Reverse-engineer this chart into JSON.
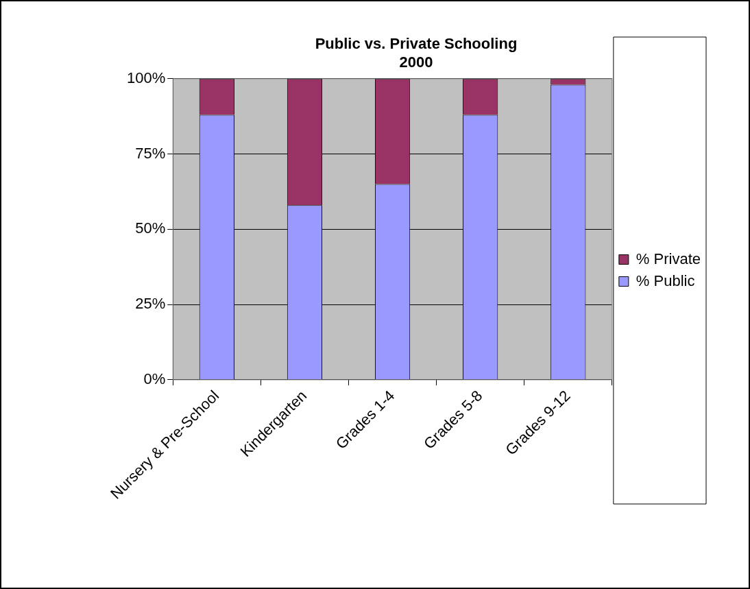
{
  "chart_data": {
    "type": "bar",
    "title": "Public vs. Private Schooling\n2000",
    "categories": [
      "Nursery & Pre-School",
      "Kindergarten",
      "Grades 1-4",
      "Grades 5-8",
      "Grades 9-12"
    ],
    "series": [
      {
        "name": "% Public",
        "color": "#9999ff",
        "values": [
          88,
          58,
          65,
          88,
          98
        ]
      },
      {
        "name": "% Private",
        "color": "#993366",
        "values": [
          12,
          42,
          35,
          12,
          2
        ]
      }
    ],
    "stacked": true,
    "ylim": [
      0,
      100
    ],
    "yticks": [
      {
        "value": 0,
        "label": "0%"
      },
      {
        "value": 25,
        "label": "25%"
      },
      {
        "value": 50,
        "label": "50%"
      },
      {
        "value": 75,
        "label": "75%"
      },
      {
        "value": 100,
        "label": "100%"
      }
    ],
    "grid": "y",
    "legend": "right"
  }
}
